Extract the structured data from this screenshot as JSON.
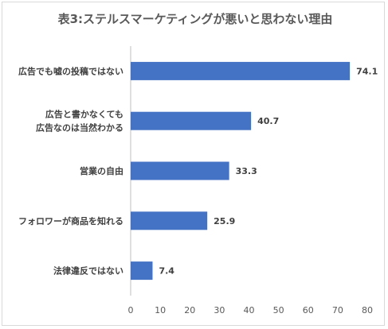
{
  "chart_data": {
    "type": "bar",
    "orientation": "horizontal",
    "title": "表3:ステルスマーケティングが悪いと思わない理由",
    "categories": [
      [
        "広告でも嘘の投稿ではない"
      ],
      [
        "広告と書かなくても",
        "広告なのは当然わかる"
      ],
      [
        "営業の自由"
      ],
      [
        "フォロワーが商品を知れる"
      ],
      [
        "法律違反ではない"
      ]
    ],
    "values": [
      74.1,
      40.7,
      33.3,
      25.9,
      7.4
    ],
    "value_labels": [
      "74.1",
      "40.7",
      "33.3",
      "25.9",
      "7.4"
    ],
    "xlim": [
      0,
      80
    ],
    "ticks": [
      "0",
      "10",
      "20",
      "30",
      "40",
      "50",
      "60",
      "70",
      "80"
    ],
    "grid": false,
    "legend": "none",
    "bar_color": "#4472c4"
  }
}
